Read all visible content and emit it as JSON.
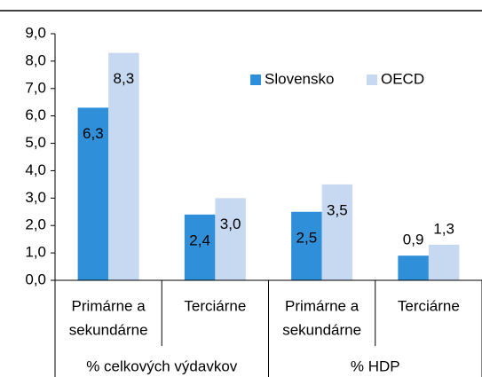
{
  "chart_data": {
    "type": "bar",
    "categories": [
      [
        "Primárne a",
        "sekundárne"
      ],
      [
        "Terciárne"
      ],
      [
        "Primárne a",
        "sekundárne"
      ],
      [
        "Terciárne"
      ]
    ],
    "groups": [
      "% celkových výdavkov",
      "% HDP"
    ],
    "series": [
      {
        "name": "Slovensko",
        "color": "#2f8fd8",
        "values": [
          6.3,
          2.4,
          2.5,
          0.9
        ],
        "value_labels": [
          "6,3",
          "2,4",
          "2,5",
          "0,9"
        ]
      },
      {
        "name": "OECD",
        "color": "#c6d9f1",
        "values": [
          8.3,
          3.0,
          3.5,
          1.3
        ],
        "value_labels": [
          "8,3",
          "3,0",
          "3,5",
          "1,3"
        ]
      }
    ],
    "ylim": [
      0,
      9
    ],
    "yticks": [
      {
        "value": 0,
        "label": "0,0"
      },
      {
        "value": 1,
        "label": "1,0"
      },
      {
        "value": 2,
        "label": "2,0"
      },
      {
        "value": 3,
        "label": "3,0"
      },
      {
        "value": 4,
        "label": "4,0"
      },
      {
        "value": 5,
        "label": "5,0"
      },
      {
        "value": 6,
        "label": "6,0"
      },
      {
        "value": 7,
        "label": "7,0"
      },
      {
        "value": 8,
        "label": "8,0"
      },
      {
        "value": 9,
        "label": "9,0"
      }
    ],
    "legend": "top-right"
  }
}
